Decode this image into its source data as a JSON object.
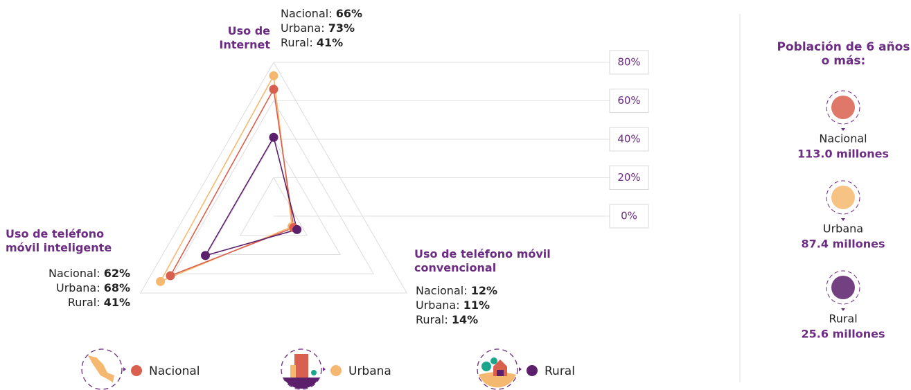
{
  "chart_data": {
    "type": "radar",
    "categories": [
      "Uso de Internet",
      "Uso de teléfono móvil convencional",
      "Uso de teléfono móvil inteligente"
    ],
    "series": [
      {
        "name": "Nacional",
        "color": "#d9604f",
        "values": [
          66,
          12,
          62
        ],
        "value_labels": [
          "66%",
          "12%",
          "62%"
        ]
      },
      {
        "name": "Urbana",
        "color": "#f5b870",
        "values": [
          73,
          11,
          68
        ],
        "value_labels": [
          "73%",
          "11%",
          "68%"
        ]
      },
      {
        "name": "Rural",
        "color": "#5b1f6b",
        "values": [
          41,
          14,
          41
        ],
        "value_labels": [
          "41%",
          "14%",
          "41%"
        ]
      }
    ],
    "rlim": [
      0,
      80
    ],
    "rticks": [
      {
        "value": 0,
        "label": "0%"
      },
      {
        "value": 20,
        "label": "20%"
      },
      {
        "value": 40,
        "label": "40%"
      },
      {
        "value": 60,
        "label": "60%"
      },
      {
        "value": 80,
        "label": "80%"
      }
    ],
    "grid": true
  },
  "population": {
    "title": "Población de 6 años o más:",
    "values": [
      "113.0 millones",
      "87.4 millones",
      "25.6 millones"
    ]
  }
}
